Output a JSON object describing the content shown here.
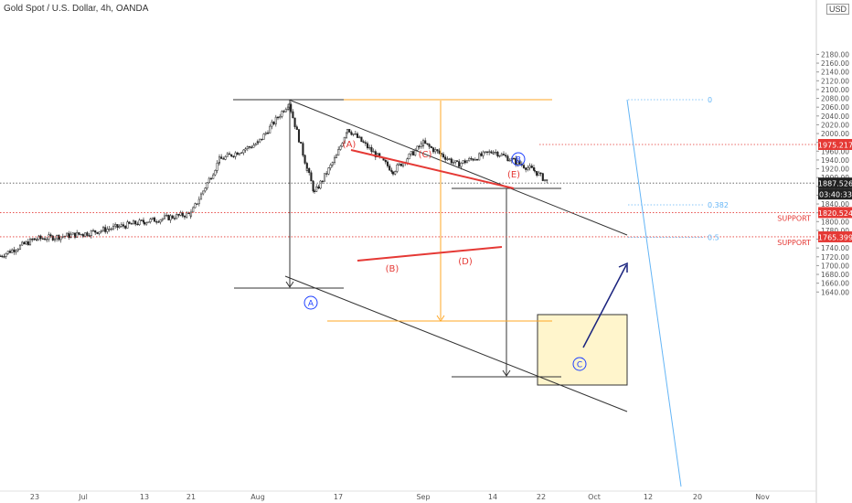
{
  "header": {
    "title": "Gold Spot / U.S. Dollar, 4h, OANDA",
    "currency_badge": "USD"
  },
  "chart_data": {
    "type": "candlestick",
    "title": "Gold Spot / U.S. Dollar, 4h, OANDA",
    "ylim": [
      1630,
      2200
    ],
    "y_ticks": [
      1640,
      1660,
      1680,
      1700,
      1720,
      1740,
      1760,
      1780,
      1800,
      1820,
      1840,
      1860,
      1880,
      1900,
      1920,
      1940,
      1960,
      1980,
      2000,
      2020,
      2040,
      2060,
      2080,
      2100,
      2120,
      2140,
      2160,
      2180
    ],
    "x_ticks": [
      "23",
      "Jul",
      "13",
      "21",
      "Aug",
      "17",
      "Sep",
      "14",
      "22",
      "Oct",
      "12",
      "20",
      "Nov"
    ],
    "price_path": [
      {
        "date": "Jun 15",
        "price": 1722
      },
      {
        "date": "Jun 23",
        "price": 1760
      },
      {
        "date": "Jul 1",
        "price": 1772
      },
      {
        "date": "Jul 13",
        "price": 1800
      },
      {
        "date": "Jul 21",
        "price": 1818
      },
      {
        "date": "Jul 27",
        "price": 1940
      },
      {
        "date": "Aug 3",
        "price": 1978
      },
      {
        "date": "Aug 7",
        "price": 2070
      },
      {
        "date": "Aug 11",
        "price": 1920
      },
      {
        "date": "Aug 12",
        "price": 1865
      },
      {
        "date": "Aug 17",
        "price": 1948
      },
      {
        "date": "Aug 18",
        "price": 2012
      },
      {
        "date": "Aug 25",
        "price": 1915
      },
      {
        "date": "Sep 1",
        "price": 1978
      },
      {
        "date": "Sep 8",
        "price": 1930
      },
      {
        "date": "Sep 18",
        "price": 1960
      },
      {
        "date": "Sep 21",
        "price": 1915
      },
      {
        "date": "Sep 22",
        "price": 1887.526
      }
    ],
    "price_labels": [
      {
        "value": 1975.217,
        "text": "1975.217",
        "color": "#e53935"
      },
      {
        "value": 1887.526,
        "text": "1887.526",
        "color": "#222222"
      },
      {
        "value": 1820.524,
        "text": "1820.524",
        "color": "#e53935"
      },
      {
        "value": 1765.399,
        "text": "1765.399",
        "color": "#e53935"
      }
    ],
    "countdown": "03:40:33",
    "support_levels": [
      {
        "value": 1820.524,
        "label": "SUPPORT"
      },
      {
        "value": 1765.399,
        "label": "SUPPORT"
      }
    ],
    "fib_levels": [
      {
        "value": 2077,
        "label": "0"
      },
      {
        "value": 1838,
        "label": "0.382"
      },
      {
        "value": 1764,
        "label": "0.5"
      }
    ],
    "wave_labels": {
      "red": [
        "(A)",
        "(B)",
        "(C)",
        "(D)",
        "(E)"
      ],
      "blue": [
        "A",
        "B",
        "C"
      ]
    },
    "colors": {
      "bullish": "#26a69a",
      "bearish": "#222222",
      "support": "#e53935",
      "fib": "#64b5f6",
      "orange": "#ffa726",
      "target_box": "#fff5cc",
      "arrow": "#1a237e"
    }
  }
}
